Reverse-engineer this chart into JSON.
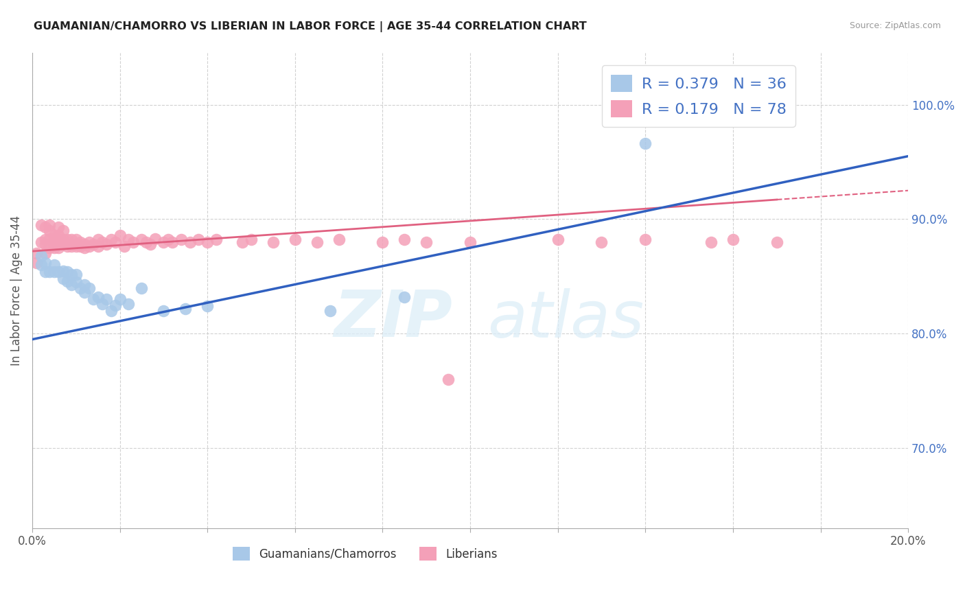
{
  "title": "GUAMANIAN/CHAMORRO VS LIBERIAN IN LABOR FORCE | AGE 35-44 CORRELATION CHART",
  "source": "Source: ZipAtlas.com",
  "ylabel": "In Labor Force | Age 35-44",
  "legend_label1": "Guamanians/Chamorros",
  "legend_label2": "Liberians",
  "R1": 0.379,
  "N1": 36,
  "R2": 0.179,
  "N2": 78,
  "color_blue": "#a8c8e8",
  "color_pink": "#f4a0b8",
  "color_blue_line": "#3060c0",
  "color_pink_line": "#e06080",
  "watermark_zip": "ZIP",
  "watermark_atlas": "atlas",
  "xlim_min": 0.0,
  "xlim_max": 0.2,
  "ylim_min": 0.63,
  "ylim_max": 1.045,
  "ytick_vals": [
    0.7,
    0.8,
    0.9,
    1.0
  ],
  "ytick_labels": [
    "70.0%",
    "80.0%",
    "90.0%",
    "100.0%"
  ],
  "blue_line_x0": 0.0,
  "blue_line_y0": 0.795,
  "blue_line_x1": 0.2,
  "blue_line_y1": 0.955,
  "pink_line_x0": 0.0,
  "pink_line_y0": 0.872,
  "pink_line_x1": 0.2,
  "pink_line_y1": 0.925,
  "blue_x": [
    0.002,
    0.002,
    0.003,
    0.003,
    0.004,
    0.005,
    0.005,
    0.006,
    0.007,
    0.007,
    0.008,
    0.008,
    0.009,
    0.009,
    0.01,
    0.01,
    0.011,
    0.012,
    0.012,
    0.013,
    0.014,
    0.015,
    0.016,
    0.017,
    0.018,
    0.019,
    0.02,
    0.022,
    0.025,
    0.03,
    0.035,
    0.04,
    0.068,
    0.085,
    0.14,
    0.165
  ],
  "blue_y": [
    0.86,
    0.868,
    0.854,
    0.862,
    0.854,
    0.854,
    0.86,
    0.854,
    0.848,
    0.855,
    0.846,
    0.854,
    0.843,
    0.852,
    0.845,
    0.852,
    0.84,
    0.843,
    0.836,
    0.84,
    0.83,
    0.832,
    0.826,
    0.83,
    0.82,
    0.825,
    0.83,
    0.826,
    0.84,
    0.82,
    0.822,
    0.824,
    0.82,
    0.832,
    0.966,
    1.0
  ],
  "pink_x": [
    0.001,
    0.001,
    0.002,
    0.002,
    0.003,
    0.003,
    0.003,
    0.003,
    0.004,
    0.004,
    0.004,
    0.004,
    0.005,
    0.005,
    0.005,
    0.005,
    0.006,
    0.006,
    0.006,
    0.006,
    0.007,
    0.007,
    0.007,
    0.007,
    0.008,
    0.008,
    0.009,
    0.009,
    0.009,
    0.01,
    0.01,
    0.01,
    0.011,
    0.011,
    0.012,
    0.012,
    0.013,
    0.013,
    0.014,
    0.015,
    0.015,
    0.016,
    0.017,
    0.018,
    0.019,
    0.02,
    0.021,
    0.022,
    0.023,
    0.025,
    0.026,
    0.027,
    0.028,
    0.03,
    0.031,
    0.032,
    0.034,
    0.036,
    0.038,
    0.04,
    0.042,
    0.048,
    0.05,
    0.055,
    0.06,
    0.065,
    0.07,
    0.08,
    0.085,
    0.09,
    0.095,
    0.1,
    0.12,
    0.13,
    0.14,
    0.155,
    0.16,
    0.17
  ],
  "pink_y": [
    0.862,
    0.87,
    0.88,
    0.895,
    0.87,
    0.878,
    0.882,
    0.893,
    0.875,
    0.883,
    0.89,
    0.895,
    0.875,
    0.883,
    0.886,
    0.878,
    0.875,
    0.882,
    0.886,
    0.893,
    0.878,
    0.882,
    0.89,
    0.88,
    0.882,
    0.876,
    0.878,
    0.882,
    0.876,
    0.882,
    0.878,
    0.876,
    0.88,
    0.876,
    0.878,
    0.875,
    0.88,
    0.876,
    0.878,
    0.882,
    0.876,
    0.88,
    0.878,
    0.882,
    0.88,
    0.886,
    0.876,
    0.882,
    0.88,
    0.882,
    0.88,
    0.878,
    0.883,
    0.88,
    0.882,
    0.88,
    0.882,
    0.88,
    0.882,
    0.88,
    0.882,
    0.88,
    0.882,
    0.88,
    0.882,
    0.88,
    0.882,
    0.88,
    0.882,
    0.88,
    0.76,
    0.88,
    0.882,
    0.88,
    0.882,
    0.88,
    0.882,
    0.88
  ]
}
